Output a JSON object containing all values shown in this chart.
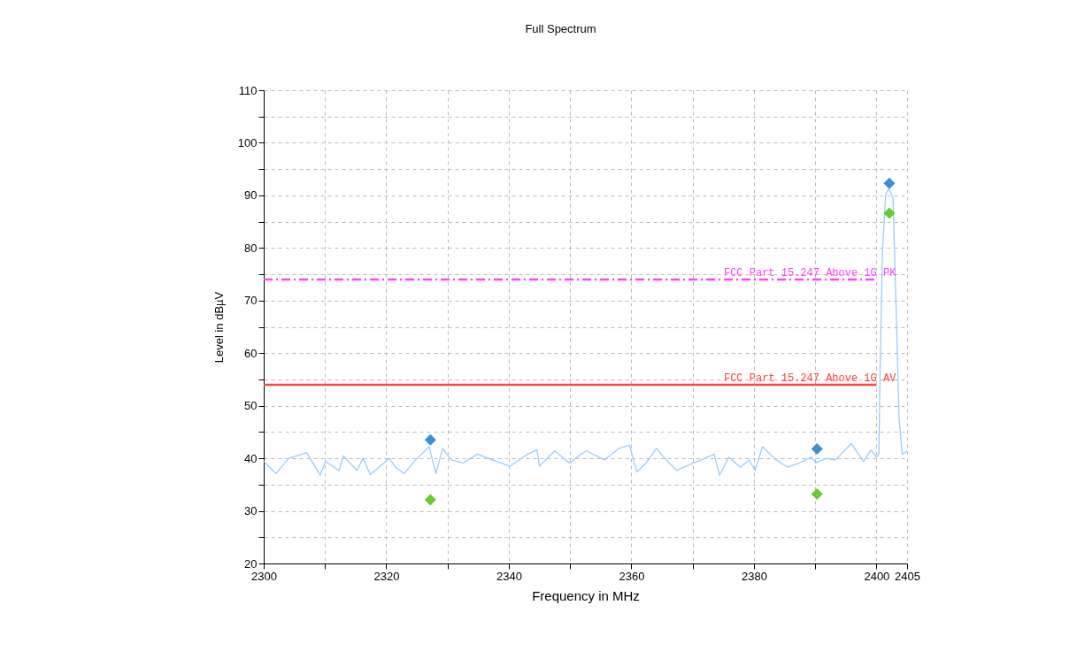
{
  "chart_data": {
    "type": "line",
    "title": "Full Spectrum",
    "xlabel": "Frequency in MHz",
    "ylabel": "Level in dBµV",
    "xlim": [
      2300,
      2405
    ],
    "ylim": [
      20,
      110
    ],
    "xticks": [
      2300,
      {
        "value": 2310,
        "label": null
      },
      2320,
      {
        "value": 2330,
        "label": null
      },
      2340,
      {
        "value": 2350,
        "label": null
      },
      2360,
      {
        "value": 2370,
        "label": null
      },
      2380,
      {
        "value": 2390,
        "label": null
      },
      2400,
      2405
    ],
    "yticks": [
      20,
      {
        "value": 25,
        "label": null
      },
      30,
      {
        "value": 35,
        "label": null
      },
      40,
      {
        "value": 45,
        "label": null
      },
      50,
      {
        "value": 55,
        "label": null
      },
      60,
      {
        "value": 65,
        "label": null
      },
      70,
      {
        "value": 75,
        "label": null
      },
      80,
      {
        "value": 85,
        "label": null
      },
      90,
      {
        "value": 95,
        "label": null
      },
      100,
      {
        "value": 105,
        "label": null
      },
      110
    ],
    "grid": true,
    "series": [
      {
        "type": "line",
        "color": "#99ccff",
        "x": [
          2300,
          2300.3,
          2302,
          2304.1,
          2307,
          2309.2,
          2310.1,
          2312.3,
          2313,
          2315.2,
          2316.2,
          2317.4,
          2320.5,
          2321.5,
          2322.9,
          2324.8,
          2327,
          2328.1,
          2329.2,
          2330.6,
          2332.5,
          2334.9,
          2337.3,
          2340.2,
          2343.1,
          2344.6,
          2345,
          2347.5,
          2349.9,
          2351.8,
          2352.7,
          2355.6,
          2358,
          2359.7,
          2360.9,
          2362.4,
          2364.1,
          2365.3,
          2367.4,
          2370.1,
          2372,
          2373.5,
          2374.4,
          2375.9,
          2377.8,
          2379.2,
          2380.2,
          2381.4,
          2383.6,
          2385.5,
          2387.4,
          2389.4,
          2390.1,
          2391.8,
          2393.3,
          2395.9,
          2397.9,
          2399.1,
          2400,
          2400.4,
          2400.6,
          2401,
          2401.5,
          2402,
          2402.7,
          2403.2,
          2403.7,
          2404.2,
          2404.9,
          2405
        ],
        "values": [
          39.5,
          39.1,
          37.1,
          40,
          41.1,
          36.8,
          39.4,
          37.7,
          40.5,
          37.7,
          40,
          36.9,
          40,
          38.3,
          37.1,
          39.7,
          42.2,
          37.1,
          41.9,
          39.7,
          39.1,
          40.8,
          39.7,
          38.5,
          40.8,
          41.6,
          38.5,
          41.4,
          39.1,
          40.8,
          41.4,
          39.7,
          41.9,
          42.5,
          37.4,
          39.1,
          41.9,
          40.2,
          37.7,
          39.1,
          40,
          40.8,
          36.8,
          40.2,
          38.3,
          39.7,
          37.7,
          42.2,
          39.7,
          38.3,
          39.1,
          40.2,
          39.1,
          40,
          39.7,
          42.8,
          39.4,
          41.6,
          40.2,
          40.8,
          57.6,
          80,
          90.1,
          91.3,
          89.6,
          68.8,
          47.5,
          40.8,
          41.2,
          41.5
        ]
      },
      {
        "type": "line",
        "name": "FCC Part 15.247 Above 1G PK",
        "color": "#ff44ff",
        "line_style": "dashed",
        "x": [
          2300,
          2400
        ],
        "values": [
          74,
          74
        ]
      },
      {
        "type": "line",
        "name": "FCC Part 15.247 Above 1G AV",
        "color": "#ff4444",
        "x": [
          2300,
          2400
        ],
        "values": [
          54,
          54
        ]
      },
      {
        "type": "scatter",
        "marker": "diamond",
        "color": "#3a8fd9",
        "x": [
          2327.2,
          2390.3,
          2402.1
        ],
        "values": [
          43.5,
          41.8,
          92.3
        ]
      },
      {
        "type": "scatter",
        "marker": "diamond",
        "color": "#66cc33",
        "x": [
          2327.2,
          2390.3,
          2402.1
        ],
        "values": [
          32.1,
          33.2,
          86.6
        ]
      }
    ]
  }
}
